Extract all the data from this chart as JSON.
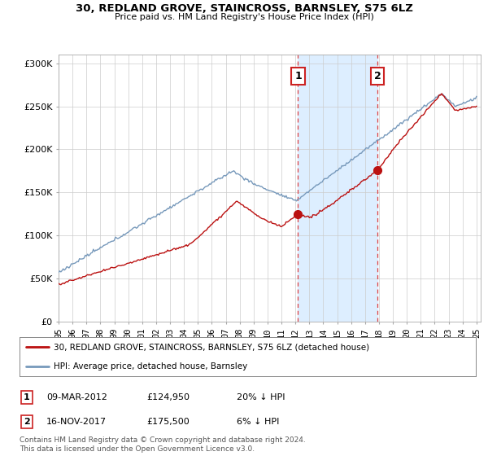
{
  "title": "30, REDLAND GROVE, STAINCROSS, BARNSLEY, S75 6LZ",
  "subtitle": "Price paid vs. HM Land Registry's House Price Index (HPI)",
  "ylabel_ticks": [
    "£0",
    "£50K",
    "£100K",
    "£150K",
    "£200K",
    "£250K",
    "£300K"
  ],
  "ytick_values": [
    0,
    50000,
    100000,
    150000,
    200000,
    250000,
    300000
  ],
  "ylim": [
    0,
    310000
  ],
  "xlim_start": 1995.0,
  "xlim_end": 2025.3,
  "sale1_x": 2012.19,
  "sale1_y": 124950,
  "sale2_x": 2017.88,
  "sale2_y": 175500,
  "hpi_color": "#7799bb",
  "price_color": "#bb1111",
  "highlight_color": "#ddeeff",
  "dashed_color": "#dd4444",
  "grid_color": "#cccccc",
  "legend_entry1": "30, REDLAND GROVE, STAINCROSS, BARNSLEY, S75 6LZ (detached house)",
  "legend_entry2": "HPI: Average price, detached house, Barnsley",
  "table_row1": [
    "1",
    "09-MAR-2012",
    "£124,950",
    "20% ↓ HPI"
  ],
  "table_row2": [
    "2",
    "16-NOV-2017",
    "£175,500",
    "6% ↓ HPI"
  ],
  "footnote": "Contains HM Land Registry data © Crown copyright and database right 2024.\nThis data is licensed under the Open Government Licence v3.0.",
  "background_color": "#ffffff",
  "ann_box_color": "#cc2222",
  "figsize": [
    6.0,
    5.6
  ],
  "dpi": 100
}
